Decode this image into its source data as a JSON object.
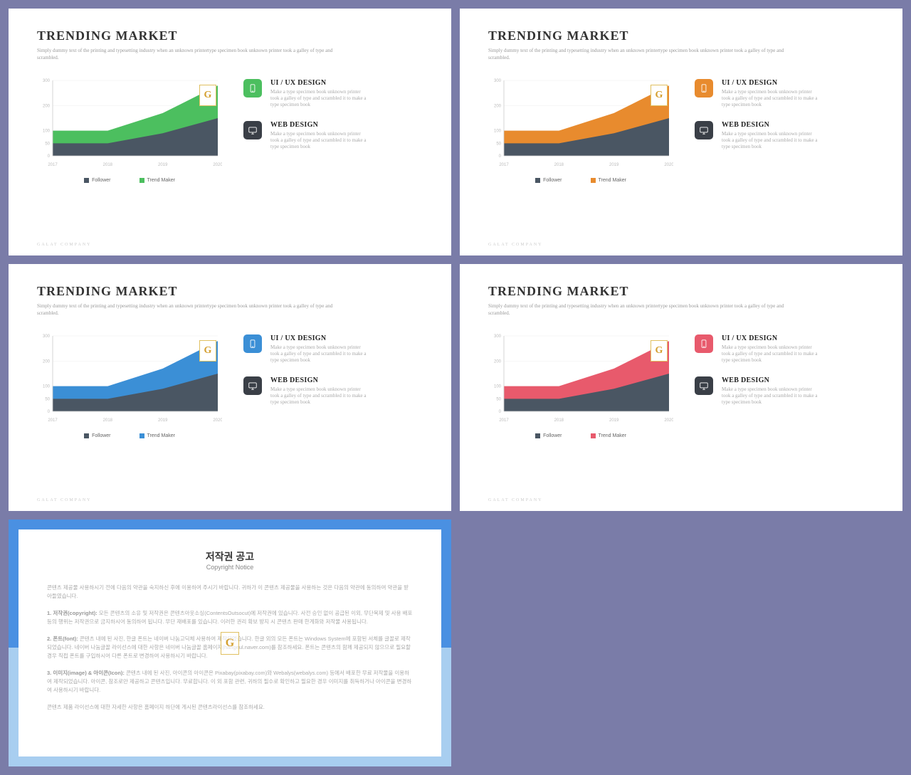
{
  "common": {
    "title": "TRENDING MARKET",
    "subtitle": "Simply dummy text of the printing and typesetting industry when an unknown printertype specimen book unknown printer took a galley of type and scrambled.",
    "footer": "GALAT COMPANY",
    "badge": "G",
    "chart": {
      "type": "area",
      "x_labels": [
        "2017",
        "2018",
        "2019",
        "2020"
      ],
      "y_ticks": [
        0,
        50,
        100,
        200,
        300
      ],
      "ylim": [
        0,
        300
      ],
      "series1": {
        "name": "Follower",
        "values": [
          50,
          50,
          90,
          150
        ],
        "color": "#4a5663"
      },
      "series2": {
        "name": "Trend Maker",
        "values": [
          100,
          100,
          170,
          280
        ]
      },
      "grid_color": "#eeeeee",
      "axis_color": "#cccccc"
    },
    "info1": {
      "heading": "UI / UX DESIGN",
      "body": "Make a type specimen book unknown printer took a galley of type and scrambled it to make a type specimen book"
    },
    "info2": {
      "heading": "WEB DESIGN",
      "body": "Make a type specimen book unknown printer took a galley of type and scrambled it to make a type specimen book",
      "icon_bg": "#3a3f47"
    }
  },
  "variants": [
    {
      "accent": "#4cbf5f"
    },
    {
      "accent": "#e88b2e"
    },
    {
      "accent": "#3b8fd6"
    },
    {
      "accent": "#e85a6c"
    }
  ],
  "copyright": {
    "title_kr": "저작권 공고",
    "title_en": "Copyright Notice",
    "p1": "콘텐츠 제공물 사용하시기 전에 다음의 약관을 숙지하신 후에 이용하여 주시기 바랍니다. 귀하가 이 콘텐츠 제공물을 사용하는 것은 다음의 약관에 동의하여 약관을 받아들였습니다.",
    "p2_label": "1. 저작권(copyright):",
    "p2": " 모든 콘텐츠의 소유 및 저작권은 콘텐츠아웃소싱(ContentsOutsocut)에 저작권에 있습니다. 사전 승인 없이 공급된 이외, 무단복제 및 사용 배포 등의 행위는 저작권으로 금지하시어 동의하여 됩니다. 무단 재배포를 있습니다. 이러한 권리 확보 방지 시 콘텐츠 판매 한계화와 저작물 사용됩니다.",
    "p3_label": "2. 폰트(font):",
    "p3": " 콘텐츠 내에 된 사진, 한글 폰트는 네이버 나눔고딕체 사용하여 제작되었습니다. 한글 외의 모든 폰트는 Windows System에 포함된 서체를 글꼴로 제작되었습니다. 네이버 나눔글꼴 라이선스에 대한 사항은 네이버 나눔글꼴 홈페이지(hangeul.naver.com)를 참조하세요. 폰트는 콘텐츠의 함께 제공되지 않으므로 필요할 경우 직접 폰트를 구입하시어 다른 폰트로 변경하여 사용하시기 바랍니다.",
    "p4_label": "3. 이미지(image) & 아이콘(Icon):",
    "p4": " 콘텐츠 내에 된 사진, 아이콘의 아이콘은 Pixabay(pixabay.com)와 Webalys(webalys.com) 등에서 배포한 무료 저작물을 이용하여 제작되었습니다. 아이콘, 참조로만 제공하고 콘텐츠입니다. 무료합니다. 이 외 포함 관련, 귀하의 필수로 확인하고 필요한 경우 이미지를 취득하거나 아이콘을 변경하여 사용하시기 바랍니다.",
    "p5": "콘텐츠 제품 라이선스에 대한 자세한 사항은 홈페이지 하단에 게시된 콘텐츠라이선스를 참조하세요."
  }
}
